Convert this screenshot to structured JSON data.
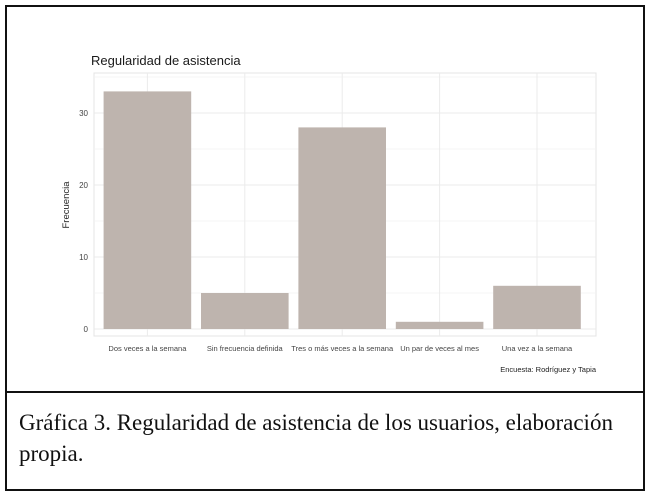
{
  "caption": "Gráfica 3. Regularidad de asistencia de los usuarios, elaboración propia.",
  "chart_data": {
    "type": "bar",
    "title": "Regularidad de asistencia",
    "xlabel": "",
    "ylabel": "Frecuencia",
    "caption": "Encuesta: Rodríguez y Tapia",
    "categories": [
      "Dos veces a la semana",
      "Sin frecuencia definida",
      "Tres o más veces a la semana",
      "Un par de veces al mes",
      "Una vez a la semana"
    ],
    "values": [
      33,
      5,
      28,
      1,
      6
    ],
    "ylim": [
      0,
      35
    ],
    "yticks": [
      0,
      10,
      20,
      30
    ],
    "grid": true,
    "bar_color": "#beb4ae",
    "grid_color": "#ebebeb"
  }
}
